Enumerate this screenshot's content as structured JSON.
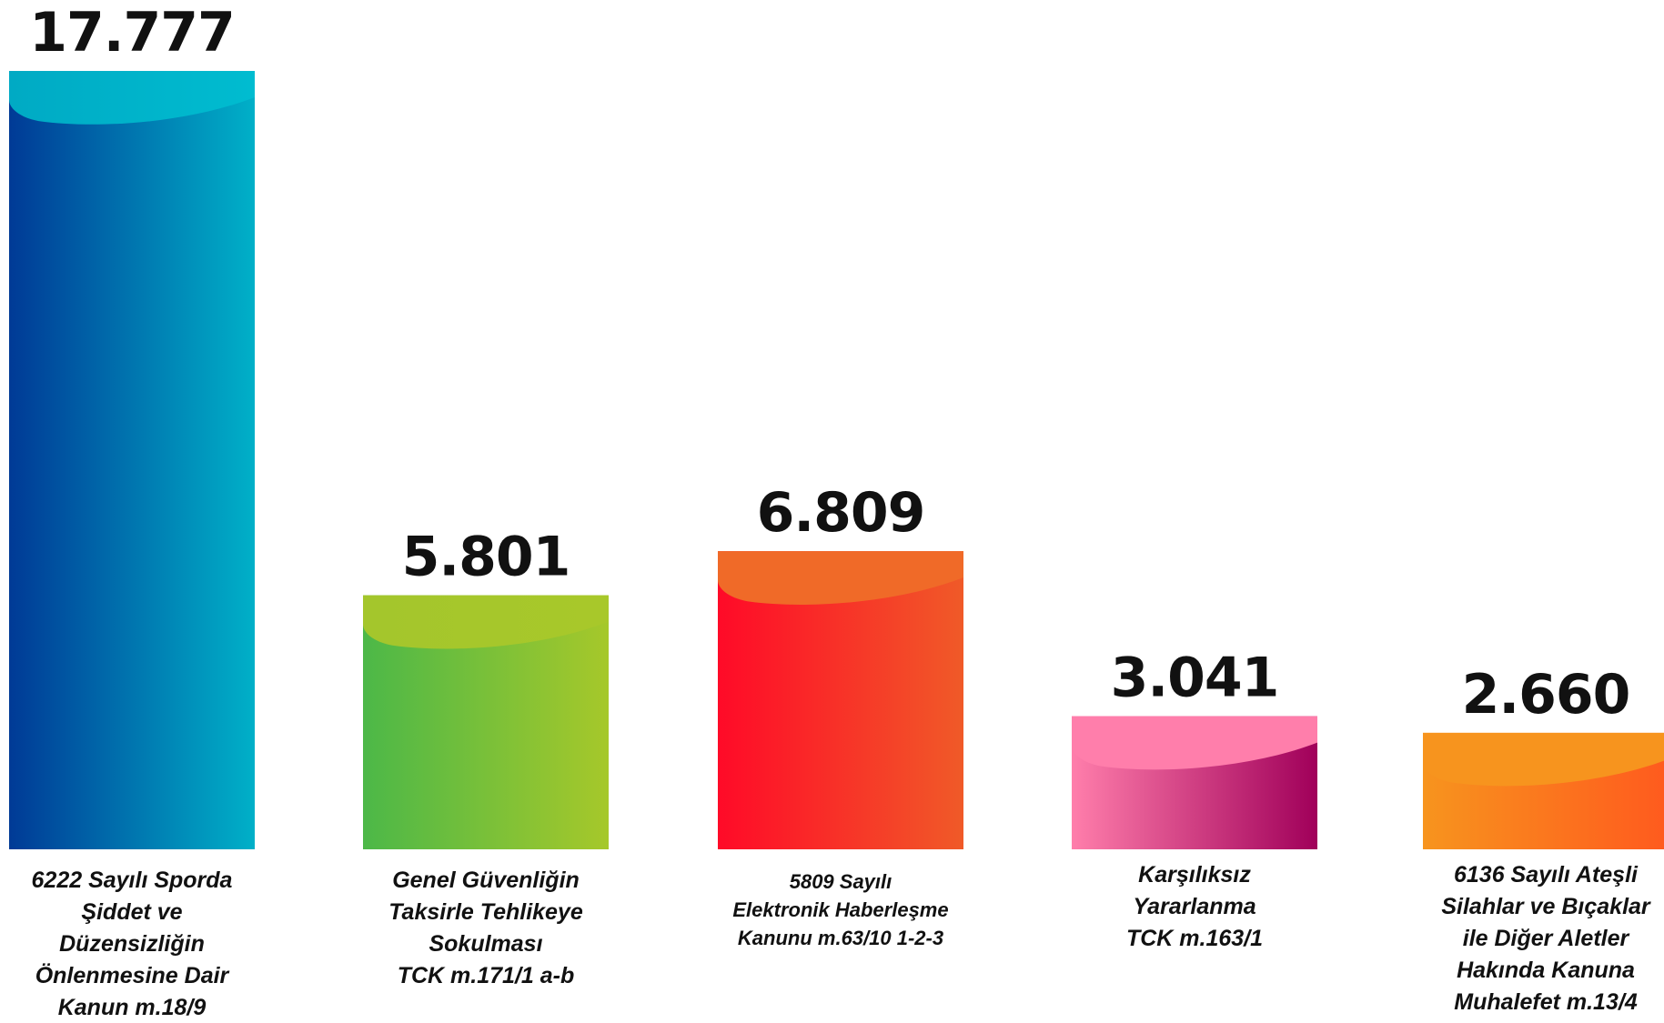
{
  "chart_data": {
    "type": "bar",
    "title": "",
    "xlabel": "",
    "ylabel": "",
    "ylim": [
      0,
      17777
    ],
    "grid": false,
    "legend": "none",
    "categories": [
      [
        "6222 Sayılı Sporda",
        "Şiddet ve",
        "Düzensizliğin",
        "Önlenmesine Dair",
        "Kanun m.18/9"
      ],
      [
        "Genel Güvenliğin",
        "Taksirle Tehlikeye",
        "Sokulması",
        "TCK m.171/1 a-b"
      ],
      [
        "5809 Sayılı",
        "Elektronik  Haberleşme",
        "Kanunu m.63/10 1-2-3"
      ],
      [
        "Karşılıksız",
        "Yararlanma",
        "TCK m.163/1"
      ],
      [
        "6136 Sayılı Ateşli",
        "Silahlar ve Bıçaklar",
        "ile Diğer Aletler",
        "Hakında Kanuna",
        "Muhalefet m.13/4"
      ]
    ],
    "values": [
      17777,
      5801,
      6809,
      3041,
      2660
    ],
    "value_labels": [
      "17.777",
      "5.801",
      "6.809",
      "3.041",
      "2.660"
    ],
    "colors": [
      {
        "left": "#003a96",
        "right": "#00b0c8",
        "cap_left": "#00aac4",
        "cap_right": "#00bcd0"
      },
      {
        "left": "#4cb848",
        "right": "#a6c82a",
        "cap_left": "#a4c62c",
        "cap_right": "#a8c82a"
      },
      {
        "left": "#ff0a28",
        "right": "#f05a28",
        "cap_left": "#f06a28",
        "cap_right": "#f06a28"
      },
      {
        "left": "#ff7eab",
        "right": "#a0005a",
        "cap_left": "#ff7eab",
        "cap_right": "#ff7eab"
      },
      {
        "left": "#f7941e",
        "right": "#ff5a1e",
        "cap_left": "#f7941e",
        "cap_right": "#f7941e"
      }
    ]
  }
}
